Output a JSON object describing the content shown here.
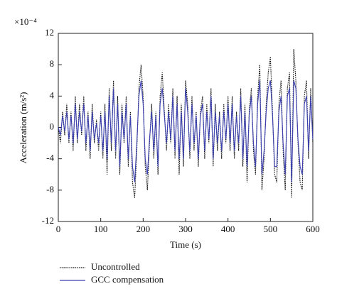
{
  "chart_data": {
    "type": "line",
    "x_label": "Time (s)",
    "y_label": "Acceleration (m/s²)",
    "y_multiplier": "×10⁻⁴",
    "x": [
      0,
      5,
      10,
      15,
      20,
      25,
      30,
      35,
      40,
      45,
      50,
      55,
      60,
      65,
      70,
      75,
      80,
      85,
      90,
      95,
      100,
      105,
      110,
      115,
      120,
      125,
      130,
      135,
      140,
      145,
      150,
      155,
      160,
      165,
      170,
      175,
      180,
      185,
      190,
      195,
      200,
      205,
      210,
      215,
      220,
      225,
      230,
      235,
      240,
      245,
      250,
      255,
      260,
      265,
      270,
      275,
      280,
      285,
      290,
      295,
      300,
      305,
      310,
      315,
      320,
      325,
      330,
      335,
      340,
      345,
      350,
      355,
      360,
      365,
      370,
      375,
      380,
      385,
      390,
      395,
      400,
      405,
      410,
      415,
      420,
      425,
      430,
      435,
      440,
      445,
      450,
      455,
      460,
      465,
      470,
      475,
      480,
      485,
      490,
      495,
      500,
      505,
      510,
      515,
      520,
      525,
      530,
      535,
      540,
      545,
      550,
      555,
      560,
      565,
      570,
      575,
      580,
      585,
      590,
      595,
      600
    ],
    "series": [
      {
        "name": "Uncontrolled",
        "color": "#111111",
        "dash": "dotted",
        "values": [
          0,
          -2,
          2,
          -1,
          3,
          -2,
          2,
          -3,
          4,
          -2,
          3,
          -1,
          4,
          -3,
          2,
          -4,
          3,
          -2,
          1,
          -3,
          2,
          -4,
          3,
          -6,
          5,
          -3,
          6,
          -4,
          4,
          -6,
          3,
          -2,
          4,
          -5,
          2,
          -7,
          -9,
          -3,
          5,
          8,
          4,
          -5,
          -8,
          -2,
          3,
          -4,
          2,
          -6,
          4,
          7,
          2,
          -3,
          3,
          -2,
          5,
          -4,
          4,
          -6,
          3,
          -5,
          6,
          3,
          -4,
          4,
          -3,
          2,
          -5,
          2,
          4,
          -4,
          3,
          -2,
          5,
          -5,
          3,
          -3,
          2,
          -4,
          3,
          -2,
          4,
          -3,
          4,
          -4,
          2,
          -3,
          5,
          -5,
          3,
          -7,
          2,
          5,
          -3,
          -6,
          4,
          8,
          -8,
          -4,
          3,
          7,
          9,
          2,
          -6,
          -7,
          3,
          6,
          -3,
          -8,
          5,
          7,
          -9,
          10,
          6,
          -2,
          -7,
          -8,
          4,
          6,
          -4,
          5,
          -2
        ]
      },
      {
        "name": "GCC compensation",
        "color": "#3a3fb0",
        "dash": "solid",
        "values": [
          0,
          -1,
          1.5,
          -0.5,
          2,
          -1.5,
          1.5,
          -2,
          3,
          -1.5,
          2,
          -0.5,
          3,
          -2,
          1.5,
          -3,
          2,
          -1.5,
          0.5,
          -2,
          1.5,
          -3,
          2,
          -4,
          4,
          -2,
          5,
          -3,
          3,
          -5,
          2,
          -1.5,
          3,
          -4,
          1.5,
          -5,
          -7,
          -2,
          4,
          6,
          3,
          -4,
          -6,
          -1.5,
          2,
          -3,
          1.5,
          -5,
          3,
          5,
          1.5,
          -2,
          2,
          -1.5,
          4,
          -3,
          3,
          -4,
          2,
          -4,
          5,
          2,
          -3,
          3,
          -2,
          1.5,
          -4,
          1.5,
          3,
          -3,
          2,
          -1.5,
          4,
          -4,
          2,
          -2,
          1.5,
          -3,
          2,
          -1.5,
          3,
          -2,
          3,
          -3,
          1.5,
          -2,
          4,
          -4,
          2,
          -5,
          1.5,
          4,
          -2,
          -5,
          3,
          6,
          -6,
          -3,
          2,
          5,
          6,
          1.5,
          -5,
          -5,
          2,
          4,
          -2,
          -6,
          4,
          5,
          -7,
          6,
          5,
          -1.5,
          -5,
          -6,
          3,
          4,
          -3,
          4,
          -1.5
        ]
      }
    ],
    "xlim": [
      0,
      600
    ],
    "xticks": [
      0,
      100,
      200,
      300,
      400,
      500,
      600
    ],
    "ylim": [
      -12,
      12
    ],
    "yticks": [
      -12,
      -8,
      -4,
      0,
      4,
      8,
      12
    ]
  }
}
